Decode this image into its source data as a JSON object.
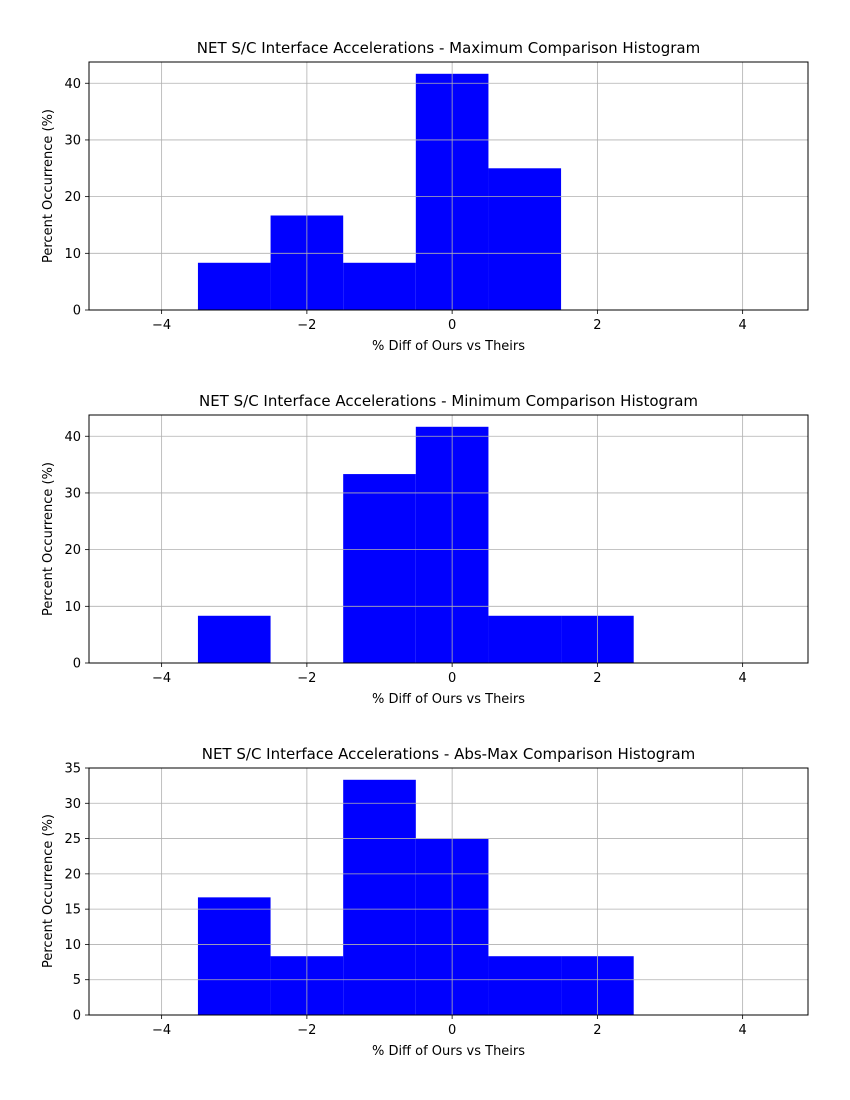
{
  "chart_data": [
    {
      "type": "bar",
      "title": "NET S/C Interface Accelerations - Maximum Comparison Histogram",
      "xlabel": "% Diff of Ours vs Theirs",
      "ylabel": "Percent Occurrence (%)",
      "xlim": [
        -5,
        4.9
      ],
      "ylim": [
        0,
        43.75
      ],
      "xticks": [
        -4,
        -2,
        0,
        2,
        4
      ],
      "xtick_labels": [
        "−4",
        "−2",
        "0",
        "2",
        "4"
      ],
      "yticks": [
        0,
        10,
        20,
        30,
        40
      ],
      "grid": true,
      "color": "#0000ff",
      "bins": [
        {
          "x0": -3.5,
          "x1": -2.5,
          "value": 8.33
        },
        {
          "x0": -2.5,
          "x1": -1.5,
          "value": 16.67
        },
        {
          "x0": -1.5,
          "x1": -0.5,
          "value": 8.33
        },
        {
          "x0": -0.5,
          "x1": 0.5,
          "value": 41.67
        },
        {
          "x0": 0.5,
          "x1": 1.5,
          "value": 25.0
        }
      ]
    },
    {
      "type": "bar",
      "title": "NET S/C Interface Accelerations - Minimum Comparison Histogram",
      "xlabel": "% Diff of Ours vs Theirs",
      "ylabel": "Percent Occurrence (%)",
      "xlim": [
        -5,
        4.9
      ],
      "ylim": [
        0,
        43.75
      ],
      "xticks": [
        -4,
        -2,
        0,
        2,
        4
      ],
      "xtick_labels": [
        "−4",
        "−2",
        "0",
        "2",
        "4"
      ],
      "yticks": [
        0,
        10,
        20,
        30,
        40
      ],
      "grid": true,
      "color": "#0000ff",
      "bins": [
        {
          "x0": -3.5,
          "x1": -2.5,
          "value": 8.33
        },
        {
          "x0": -1.5,
          "x1": -0.5,
          "value": 33.33
        },
        {
          "x0": -0.5,
          "x1": 0.5,
          "value": 41.67
        },
        {
          "x0": 0.5,
          "x1": 1.5,
          "value": 8.33
        },
        {
          "x0": 1.5,
          "x1": 2.5,
          "value": 8.33
        }
      ]
    },
    {
      "type": "bar",
      "title": "NET S/C Interface Accelerations - Abs-Max Comparison Histogram",
      "xlabel": "% Diff of Ours vs Theirs",
      "ylabel": "Percent Occurrence (%)",
      "xlim": [
        -5,
        4.9
      ],
      "ylim": [
        0,
        35
      ],
      "xticks": [
        -4,
        -2,
        0,
        2,
        4
      ],
      "xtick_labels": [
        "−4",
        "−2",
        "0",
        "2",
        "4"
      ],
      "yticks": [
        0,
        5,
        10,
        15,
        20,
        25,
        30,
        35
      ],
      "grid": true,
      "color": "#0000ff",
      "bins": [
        {
          "x0": -3.5,
          "x1": -2.5,
          "value": 16.67
        },
        {
          "x0": -2.5,
          "x1": -1.5,
          "value": 8.33
        },
        {
          "x0": -1.5,
          "x1": -0.5,
          "value": 33.33
        },
        {
          "x0": -0.5,
          "x1": 0.5,
          "value": 25.0
        },
        {
          "x0": 0.5,
          "x1": 1.5,
          "value": 8.33
        },
        {
          "x0": 1.5,
          "x1": 2.5,
          "value": 8.33
        }
      ]
    }
  ]
}
